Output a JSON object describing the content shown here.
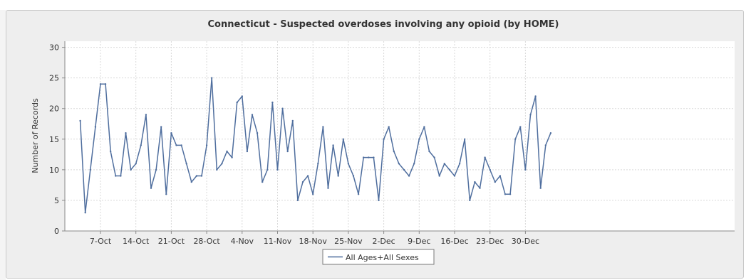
{
  "chart_data": {
    "type": "line",
    "title": "Connecticut - Suspected overdoses involving any opioid (by HOME)",
    "xlabel": "",
    "ylabel": "Number of Records",
    "ylim": [
      0,
      31
    ],
    "yticks": [
      0,
      5,
      10,
      15,
      20,
      25,
      30
    ],
    "x_start": "2017-10-03",
    "x_tick_labels": [
      "7-Oct",
      "14-Oct",
      "21-Oct",
      "28-Oct",
      "4-Nov",
      "11-Nov",
      "18-Nov",
      "25-Nov",
      "2-Dec",
      "9-Dec",
      "16-Dec",
      "23-Dec",
      "30-Dec"
    ],
    "grid": true,
    "legend_position": "bottom-center",
    "series": [
      {
        "name": "All Ages+All Sexes",
        "color": "#4f6e9e",
        "values": [
          18,
          3,
          10,
          17,
          24,
          24,
          13,
          9,
          9,
          16,
          10,
          11,
          14,
          19,
          7,
          10,
          17,
          6,
          16,
          14,
          14,
          11,
          8,
          9,
          9,
          14,
          25,
          10,
          11,
          13,
          12,
          21,
          22,
          13,
          19,
          16,
          8,
          10,
          21,
          10,
          20,
          13,
          18,
          5,
          8,
          9,
          6,
          11,
          17,
          7,
          14,
          9,
          15,
          11,
          9,
          6,
          12,
          12,
          12,
          5,
          15,
          17,
          13,
          11,
          10,
          9,
          11,
          15,
          17,
          13,
          12,
          9,
          11,
          10,
          9,
          11,
          15,
          5,
          8,
          7,
          12,
          10,
          8,
          9,
          6,
          6,
          15,
          17,
          10,
          19,
          22,
          7,
          14,
          16
        ]
      }
    ]
  }
}
